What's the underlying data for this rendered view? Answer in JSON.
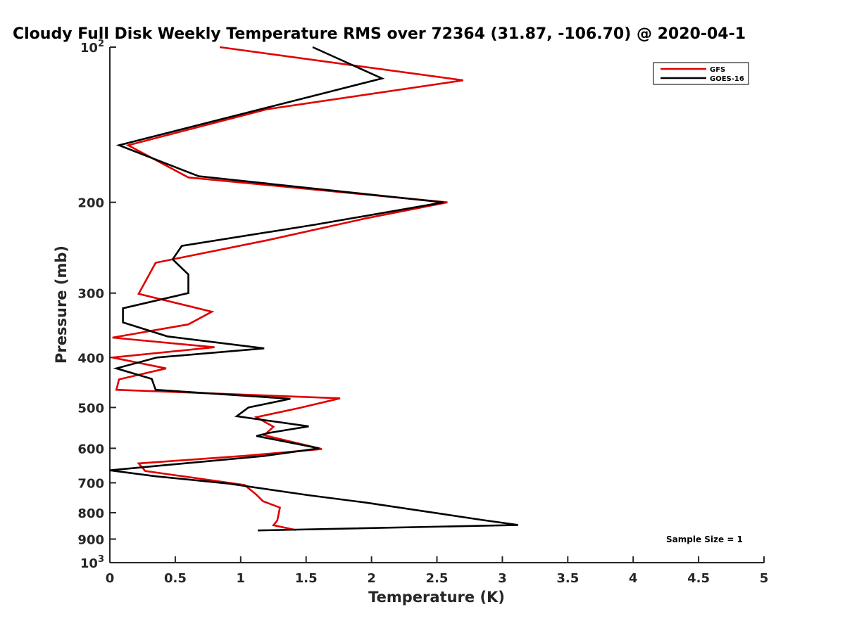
{
  "chart_data": {
    "type": "line",
    "title": "Cloudy Full Disk Weekly Temperature RMS over 72364 (31.87, -106.70) @ 2020-04-1",
    "xlabel": "Temperature (K)",
    "ylabel": "Pressure (mb)",
    "xlim": [
      0,
      5
    ],
    "ylim": [
      100,
      1000
    ],
    "y_scale": "log",
    "y_reversed": true,
    "x_ticks": [
      "0",
      "0.5",
      "1",
      "1.5",
      "2",
      "2.5",
      "3",
      "3.5",
      "4",
      "4.5",
      "5"
    ],
    "y_ticks": [
      {
        "value": 100,
        "base": "10",
        "exp": "2"
      },
      {
        "value": 200,
        "label": "200"
      },
      {
        "value": 300,
        "label": "300"
      },
      {
        "value": 400,
        "label": "400"
      },
      {
        "value": 500,
        "label": "500"
      },
      {
        "value": 600,
        "label": "600"
      },
      {
        "value": 700,
        "label": "700"
      },
      {
        "value": 800,
        "label": "800"
      },
      {
        "value": 900,
        "label": "900"
      },
      {
        "value": 1000,
        "base": "10",
        "exp": "3"
      }
    ],
    "grid": false,
    "legend_position": "top-right",
    "annotation": "Sample Size = 1",
    "series": [
      {
        "name": "GFS",
        "color": "#e00000",
        "points": [
          [
            0.84,
            100
          ],
          [
            2.7,
            116
          ],
          [
            1.2,
            132
          ],
          [
            0.14,
            155
          ],
          [
            0.6,
            179
          ],
          [
            2.58,
            200
          ],
          [
            1.95,
            215
          ],
          [
            1.2,
            237
          ],
          [
            0.35,
            262
          ],
          [
            0.22,
            301
          ],
          [
            0.78,
            326
          ],
          [
            0.6,
            345
          ],
          [
            0.02,
            366
          ],
          [
            0.8,
            382
          ],
          [
            0.02,
            400
          ],
          [
            0.43,
            420
          ],
          [
            0.07,
            441
          ],
          [
            0.05,
            462
          ],
          [
            1.76,
            480
          ],
          [
            1.45,
            501
          ],
          [
            1.12,
            522
          ],
          [
            1.25,
            545
          ],
          [
            1.18,
            566
          ],
          [
            1.62,
            602
          ],
          [
            1.05,
            620
          ],
          [
            0.22,
            642
          ],
          [
            0.27,
            664
          ],
          [
            1.03,
            707
          ],
          [
            1.12,
            738
          ],
          [
            1.17,
            760
          ],
          [
            1.3,
            782
          ],
          [
            1.29,
            805
          ],
          [
            1.28,
            828
          ],
          [
            1.25,
            846
          ],
          [
            1.42,
            864
          ]
        ]
      },
      {
        "name": "GOES-16",
        "color": "#000000",
        "points": [
          [
            1.55,
            100
          ],
          [
            2.08,
            115
          ],
          [
            1.15,
            132
          ],
          [
            0.07,
            155
          ],
          [
            0.68,
            178
          ],
          [
            2.55,
            200
          ],
          [
            1.57,
            221
          ],
          [
            0.55,
            243
          ],
          [
            0.48,
            258
          ],
          [
            0.6,
            276
          ],
          [
            0.6,
            300
          ],
          [
            0.1,
            321
          ],
          [
            0.1,
            342
          ],
          [
            0.44,
            364
          ],
          [
            1.18,
            384
          ],
          [
            0.36,
            400
          ],
          [
            0.05,
            420
          ],
          [
            0.32,
            440
          ],
          [
            0.35,
            462
          ],
          [
            1.38,
            481
          ],
          [
            1.06,
            500
          ],
          [
            0.97,
            520
          ],
          [
            1.52,
            544
          ],
          [
            1.22,
            560
          ],
          [
            1.12,
            568
          ],
          [
            1.6,
            600
          ],
          [
            1.18,
            621
          ],
          [
            0.0,
            662
          ],
          [
            0.35,
            680
          ],
          [
            0.9,
            702
          ],
          [
            1.52,
            740
          ],
          [
            1.96,
            765
          ],
          [
            2.84,
            826
          ],
          [
            3.12,
            845
          ],
          [
            1.13,
            866
          ]
        ]
      }
    ]
  }
}
